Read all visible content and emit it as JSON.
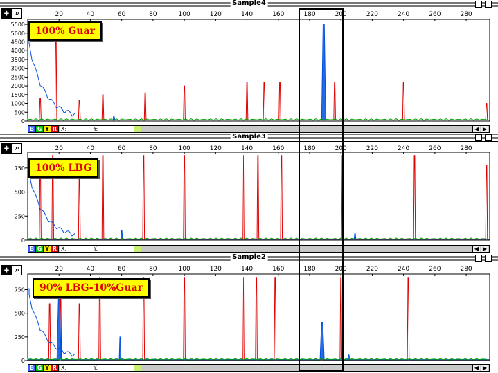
{
  "colors": {
    "red": "#e00000",
    "blue": "#0050e0",
    "green": "#00a000",
    "black": "#000000",
    "label_bg": "#ffff00"
  },
  "shared": {
    "x_ticks": [
      "20",
      "40",
      "60",
      "80",
      "100",
      "120",
      "140",
      "160",
      "180",
      "200",
      "220",
      "240",
      "260",
      "280"
    ]
  },
  "status": {
    "buttons": [
      "B",
      "G",
      "Y",
      "R"
    ],
    "x_label": "X:",
    "y_label": "Y:"
  },
  "panels": [
    {
      "title": "Sample4",
      "label": "100% Guar",
      "y_ticks": [
        "5500",
        "5000",
        "4500",
        "4000",
        "3500",
        "3000",
        "2500",
        "2000",
        "1500",
        "1000",
        "500",
        "0"
      ]
    },
    {
      "title": "Sample3",
      "label": "100% LBG",
      "y_ticks": [
        "750",
        "500",
        "250",
        "0"
      ]
    },
    {
      "title": "Sample2",
      "label": "90% LBG-10%Guar",
      "y_ticks": [
        "750",
        "500",
        "250",
        "0"
      ]
    }
  ],
  "chart_data": [
    {
      "type": "line",
      "title": "Sample4",
      "xlim": [
        0,
        295
      ],
      "ylim": [
        0,
        5700
      ],
      "series": [
        {
          "color": "red",
          "peaks": [
            [
              8,
              1300
            ],
            [
              18,
              5000
            ],
            [
              33,
              1200
            ],
            [
              48,
              1500
            ],
            [
              75,
              1600
            ],
            [
              100,
              2000
            ],
            [
              140,
              2200
            ],
            [
              151,
              2200
            ],
            [
              161,
              2200
            ],
            [
              196,
              2200
            ],
            [
              240,
              2200
            ],
            [
              293,
              1000
            ]
          ]
        },
        {
          "color": "blue",
          "peaks": [
            [
              55,
              300
            ],
            [
              189,
              5500
            ]
          ]
        },
        {
          "color": "green",
          "peaks": []
        }
      ]
    },
    {
      "type": "line",
      "title": "Sample3",
      "xlim": [
        0,
        295
      ],
      "ylim": [
        0,
        900
      ],
      "series": [
        {
          "color": "red",
          "peaks": [
            [
              8,
              760
            ],
            [
              16,
              880
            ],
            [
              33,
              640
            ],
            [
              48,
              880
            ],
            [
              74,
              880
            ],
            [
              100,
              880
            ],
            [
              138,
              880
            ],
            [
              147,
              880
            ],
            [
              162,
              880
            ],
            [
              201,
              880
            ],
            [
              247,
              880
            ],
            [
              293,
              780
            ]
          ]
        },
        {
          "color": "blue",
          "peaks": [
            [
              60,
              100
            ],
            [
              209,
              70
            ]
          ]
        },
        {
          "color": "green",
          "peaks": []
        }
      ]
    },
    {
      "type": "line",
      "title": "Sample2",
      "xlim": [
        0,
        295
      ],
      "ylim": [
        0,
        900
      ],
      "series": [
        {
          "color": "red",
          "peaks": [
            [
              14,
              600
            ],
            [
              21,
              660
            ],
            [
              33,
              600
            ],
            [
              46,
              880
            ],
            [
              74,
              880
            ],
            [
              100,
              880
            ],
            [
              138,
              880
            ],
            [
              146,
              880
            ],
            [
              158,
              880
            ],
            [
              200,
              880
            ],
            [
              243,
              880
            ]
          ]
        },
        {
          "color": "blue",
          "peaks": [
            [
              20,
              650
            ],
            [
              59,
              250
            ],
            [
              188,
              400
            ],
            [
              205,
              60
            ]
          ]
        },
        {
          "color": "green",
          "peaks": []
        }
      ]
    }
  ]
}
